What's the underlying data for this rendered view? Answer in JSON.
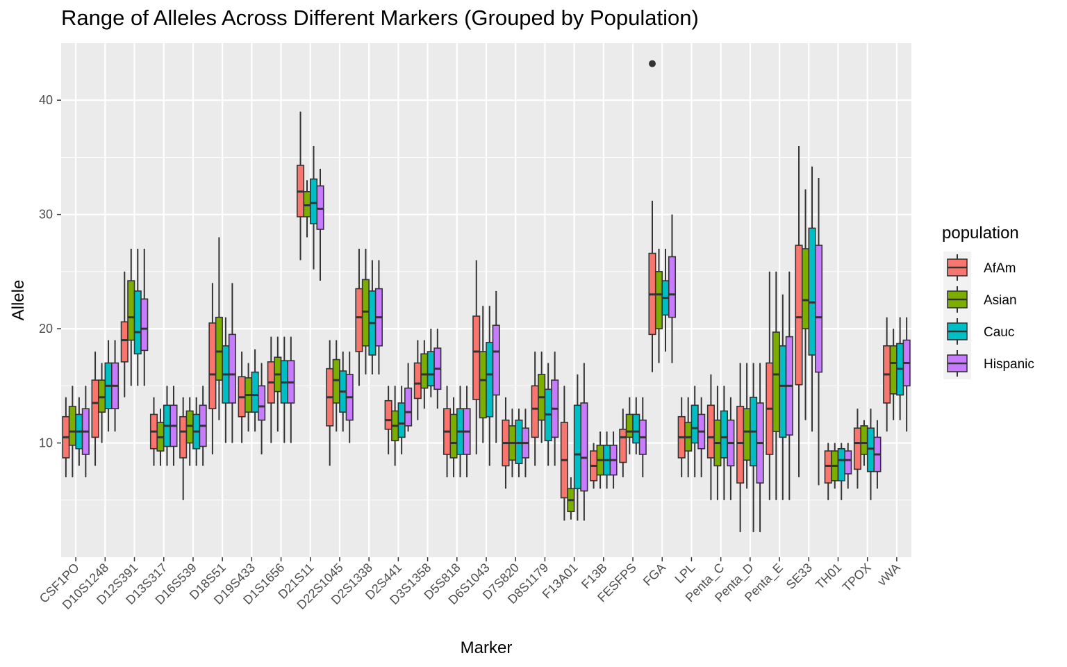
{
  "chart_data": {
    "type": "boxplot",
    "title": "Range of Alleles Across Different Markers (Grouped by Population)",
    "xlabel": "Marker",
    "ylabel": "Allele",
    "ylim": [
      0,
      45
    ],
    "yticks": [
      10,
      20,
      30,
      40
    ],
    "grid": true,
    "legend": {
      "title": "population",
      "position": "right"
    },
    "categories": [
      "CSF1PO",
      "D10S1248",
      "D12S391",
      "D13S317",
      "D16S539",
      "D18S51",
      "D19S433",
      "D1S1656",
      "D21S11",
      "D22S1045",
      "D2S1338",
      "D2S441",
      "D3S1358",
      "D5S818",
      "D6S1043",
      "D7S820",
      "D8S1179",
      "F13A01",
      "F13B",
      "FESFPS",
      "FGA",
      "LPL",
      "Penta_C",
      "Penta_D",
      "Penta_E",
      "SE33",
      "TH01",
      "TPOX",
      "vWA"
    ],
    "series": [
      {
        "name": "AfAm",
        "color": "#F8766D",
        "boxes": [
          {
            "lw": 7,
            "q1": 8.7,
            "med": 10.5,
            "q3": 12.3,
            "hw": 14
          },
          {
            "lw": 8,
            "q1": 10.5,
            "med": 13.5,
            "q3": 15.5,
            "hw": 18
          },
          {
            "lw": 14,
            "q1": 17.1,
            "med": 19,
            "q3": 20.6,
            "hw": 25
          },
          {
            "lw": 8,
            "q1": 9.5,
            "med": 11,
            "q3": 12.5,
            "hw": 14
          },
          {
            "lw": 5,
            "q1": 8.7,
            "med": 11,
            "q3": 12.3,
            "hw": 14
          },
          {
            "lw": 9,
            "q1": 13,
            "med": 16,
            "q3": 20.5,
            "hw": 24
          },
          {
            "lw": 10,
            "q1": 12.3,
            "med": 14,
            "q3": 15.8,
            "hw": 18
          },
          {
            "lw": 10,
            "q1": 13.5,
            "med": 15.3,
            "q3": 17.1,
            "hw": 19.3
          },
          {
            "lw": 26,
            "q1": 29.8,
            "med": 32,
            "q3": 34.3,
            "hw": 39
          },
          {
            "lw": 8,
            "q1": 11.5,
            "med": 14,
            "q3": 16.5,
            "hw": 19
          },
          {
            "lw": 15,
            "q1": 18,
            "med": 21,
            "q3": 23.5,
            "hw": 27
          },
          {
            "lw": 9,
            "q1": 11.2,
            "med": 12,
            "q3": 13.7,
            "hw": 15
          },
          {
            "lw": 12,
            "q1": 13.9,
            "med": 15.2,
            "q3": 17,
            "hw": 19
          },
          {
            "lw": 7,
            "q1": 9,
            "med": 11,
            "q3": 13,
            "hw": 15
          },
          {
            "lw": 9,
            "q1": 13.8,
            "med": 18,
            "q3": 21.1,
            "hw": 26
          },
          {
            "lw": 6,
            "q1": 8,
            "med": 10,
            "q3": 12,
            "hw": 14
          },
          {
            "lw": 8,
            "q1": 10.5,
            "med": 13,
            "q3": 15,
            "hw": 18
          },
          {
            "lw": 3.2,
            "q1": 5.2,
            "med": 8.5,
            "q3": 11.8,
            "hw": 15
          },
          {
            "lw": 6,
            "q1": 6.7,
            "med": 8,
            "q3": 9.3,
            "hw": 10
          },
          {
            "lw": 7,
            "q1": 8.3,
            "med": 10.5,
            "q3": 11.2,
            "hw": 13
          },
          {
            "lw": 16.2,
            "q1": 19.5,
            "med": 23,
            "q3": 26.6,
            "hw": 31.2,
            "outliers": [
              43.2
            ]
          },
          {
            "lw": 7,
            "q1": 8.7,
            "med": 10.5,
            "q3": 12.3,
            "hw": 14
          },
          {
            "lw": 5,
            "q1": 8.7,
            "med": 10.5,
            "q3": 13.3,
            "hw": 16
          },
          {
            "lw": 2.2,
            "q1": 6.5,
            "med": 10,
            "q3": 13.2,
            "hw": 17
          },
          {
            "lw": 5,
            "q1": 9,
            "med": 13,
            "q3": 17,
            "hw": 25
          },
          {
            "lw": 7,
            "q1": 15.1,
            "med": 21,
            "q3": 27.3,
            "hw": 36
          },
          {
            "lw": 5,
            "q1": 6.5,
            "med": 8,
            "q3": 9.3,
            "hw": 10
          },
          {
            "lw": 6,
            "q1": 7.7,
            "med": 10,
            "q3": 11.3,
            "hw": 13
          },
          {
            "lw": 11,
            "q1": 13.5,
            "med": 16,
            "q3": 18.5,
            "hw": 21
          }
        ]
      },
      {
        "name": "Asian",
        "color": "#7CAE00",
        "boxes": [
          {
            "lw": 7,
            "q1": 9.8,
            "med": 11,
            "q3": 13.2,
            "hw": 15
          },
          {
            "lw": 10,
            "q1": 12.7,
            "med": 14,
            "q3": 15.5,
            "hw": 17
          },
          {
            "lw": 15,
            "q1": 19,
            "med": 21,
            "q3": 24.2,
            "hw": 27
          },
          {
            "lw": 8,
            "q1": 9.3,
            "med": 10.5,
            "q3": 11.8,
            "hw": 13
          },
          {
            "lw": 8,
            "q1": 10,
            "med": 11.5,
            "q3": 12.8,
            "hw": 14
          },
          {
            "lw": 12,
            "q1": 15.5,
            "med": 18,
            "q3": 21,
            "hw": 28
          },
          {
            "lw": 11,
            "q1": 12.7,
            "med": 14.2,
            "q3": 15.7,
            "hw": 17
          },
          {
            "lw": 11,
            "q1": 14.5,
            "med": 16,
            "q3": 17.5,
            "hw": 19.3
          },
          {
            "lw": 28,
            "q1": 29.8,
            "med": 30.8,
            "q3": 32,
            "hw": 33
          },
          {
            "lw": 11,
            "q1": 13.5,
            "med": 15.5,
            "q3": 17.3,
            "hw": 19
          },
          {
            "lw": 16,
            "q1": 18.5,
            "med": 21.5,
            "q3": 24.3,
            "hw": 27
          },
          {
            "lw": 8,
            "q1": 10.2,
            "med": 11.5,
            "q3": 12.8,
            "hw": 15
          },
          {
            "lw": 13,
            "q1": 14.8,
            "med": 16,
            "q3": 17.8,
            "hw": 19
          },
          {
            "lw": 7,
            "q1": 8.7,
            "med": 10,
            "q3": 12.5,
            "hw": 14
          },
          {
            "lw": 10,
            "q1": 12.2,
            "med": 15.5,
            "q3": 18,
            "hw": 22
          },
          {
            "lw": 7,
            "q1": 8.5,
            "med": 10,
            "q3": 11.5,
            "hw": 13
          },
          {
            "lw": 10,
            "q1": 12,
            "med": 14,
            "q3": 16,
            "hw": 18
          },
          {
            "lw": 3.3,
            "q1": 4,
            "med": 5,
            "q3": 6,
            "hw": 7
          },
          {
            "lw": 6,
            "q1": 7.2,
            "med": 8.5,
            "q3": 9.8,
            "hw": 11
          },
          {
            "lw": 9,
            "q1": 10.5,
            "med": 11,
            "q3": 12.5,
            "hw": 14
          },
          {
            "lw": 17,
            "q1": 20,
            "med": 23,
            "q3": 25,
            "hw": 27
          },
          {
            "lw": 7,
            "q1": 9.3,
            "med": 10.5,
            "q3": 11.8,
            "hw": 14
          },
          {
            "lw": 5,
            "q1": 8,
            "med": 10,
            "q3": 12,
            "hw": 15
          },
          {
            "lw": 6,
            "q1": 8.5,
            "med": 11,
            "q3": 13,
            "hw": 17
          },
          {
            "lw": 5,
            "q1": 11,
            "med": 16,
            "q3": 19.7,
            "hw": 25
          },
          {
            "lw": 12,
            "q1": 20,
            "med": 22.5,
            "q3": 27,
            "hw": 32.2
          },
          {
            "lw": 6,
            "q1": 6.7,
            "med": 8,
            "q3": 9.3,
            "hw": 10
          },
          {
            "lw": 8,
            "q1": 9,
            "med": 10,
            "q3": 11.5,
            "hw": 12
          },
          {
            "lw": 12,
            "q1": 14.3,
            "med": 17,
            "q3": 18.5,
            "hw": 20
          }
        ]
      },
      {
        "name": "Cauc",
        "color": "#00BFC4",
        "boxes": [
          {
            "lw": 8,
            "q1": 9.5,
            "med": 11,
            "q3": 12.5,
            "hw": 14
          },
          {
            "lw": 11,
            "q1": 13,
            "med": 15,
            "q3": 17,
            "hw": 19
          },
          {
            "lw": 15,
            "q1": 17.8,
            "med": 19.7,
            "q3": 23.3,
            "hw": 27
          },
          {
            "lw": 8,
            "q1": 9.7,
            "med": 11.5,
            "q3": 13.3,
            "hw": 15
          },
          {
            "lw": 8,
            "q1": 9.5,
            "med": 11,
            "q3": 12.5,
            "hw": 14
          },
          {
            "lw": 10,
            "q1": 13.5,
            "med": 16,
            "q3": 18.5,
            "hw": 21
          },
          {
            "lw": 11,
            "q1": 12.7,
            "med": 14.2,
            "q3": 16.2,
            "hw": 18.2
          },
          {
            "lw": 10,
            "q1": 13.5,
            "med": 15.3,
            "q3": 17.2,
            "hw": 19.3
          },
          {
            "lw": 25.2,
            "q1": 29.2,
            "med": 31,
            "q3": 33.1,
            "hw": 36
          },
          {
            "lw": 11,
            "q1": 12.7,
            "med": 14.5,
            "q3": 16.3,
            "hw": 18
          },
          {
            "lw": 16,
            "q1": 17.7,
            "med": 20.5,
            "q3": 23.3,
            "hw": 26
          },
          {
            "lw": 9,
            "q1": 10.5,
            "med": 11.7,
            "q3": 13.5,
            "hw": 15
          },
          {
            "lw": 14,
            "q1": 15,
            "med": 16,
            "q3": 18,
            "hw": 20
          },
          {
            "lw": 7,
            "q1": 9,
            "med": 11,
            "q3": 13,
            "hw": 15
          },
          {
            "lw": 8,
            "q1": 12.3,
            "med": 16,
            "q3": 18.8,
            "hw": 22
          },
          {
            "lw": 7,
            "q1": 8.2,
            "med": 10,
            "q3": 12,
            "hw": 13
          },
          {
            "lw": 8,
            "q1": 10.2,
            "med": 12.5,
            "q3": 14.7,
            "hw": 17
          },
          {
            "lw": 3.2,
            "q1": 6,
            "med": 9,
            "q3": 13.3,
            "hw": 16
          },
          {
            "lw": 6,
            "q1": 7.2,
            "med": 8.5,
            "q3": 9.8,
            "hw": 11
          },
          {
            "lw": 9,
            "q1": 10,
            "med": 11,
            "q3": 12.5,
            "hw": 14
          },
          {
            "lw": 18,
            "q1": 21.2,
            "med": 22.7,
            "q3": 24.2,
            "hw": 27
          },
          {
            "lw": 7,
            "q1": 10,
            "med": 11.3,
            "q3": 13.3,
            "hw": 15
          },
          {
            "lw": 5,
            "q1": 8.7,
            "med": 10.5,
            "q3": 12.8,
            "hw": 15
          },
          {
            "lw": 2.2,
            "q1": 8,
            "med": 11,
            "q3": 14,
            "hw": 17
          },
          {
            "lw": 5,
            "q1": 10.5,
            "med": 15,
            "q3": 18.5,
            "hw": 23
          },
          {
            "lw": 11,
            "q1": 17.7,
            "med": 22.3,
            "q3": 28.8,
            "hw": 34.2
          },
          {
            "lw": 5,
            "q1": 6.7,
            "med": 8.5,
            "q3": 9.5,
            "hw": 10
          },
          {
            "lw": 5,
            "q1": 7.5,
            "med": 9.5,
            "q3": 11.3,
            "hw": 13
          },
          {
            "lw": 12,
            "q1": 14.2,
            "med": 16.5,
            "q3": 18.7,
            "hw": 21
          }
        ]
      },
      {
        "name": "Hispanic",
        "color": "#C77CFF",
        "boxes": [
          {
            "lw": 7,
            "q1": 9,
            "med": 11,
            "q3": 13,
            "hw": 15
          },
          {
            "lw": 11,
            "q1": 13,
            "med": 15,
            "q3": 17,
            "hw": 19
          },
          {
            "lw": 15,
            "q1": 18.1,
            "med": 20,
            "q3": 22.6,
            "hw": 27
          },
          {
            "lw": 8,
            "q1": 9.7,
            "med": 11.5,
            "q3": 13.3,
            "hw": 15
          },
          {
            "lw": 8,
            "q1": 9.7,
            "med": 11.5,
            "q3": 13.3,
            "hw": 15
          },
          {
            "lw": 10,
            "q1": 13.5,
            "med": 16,
            "q3": 19.5,
            "hw": 24
          },
          {
            "lw": 9,
            "q1": 12,
            "med": 13.2,
            "q3": 15,
            "hw": 17
          },
          {
            "lw": 10,
            "q1": 13.5,
            "med": 15.3,
            "q3": 17.2,
            "hw": 19.3
          },
          {
            "lw": 24.2,
            "q1": 28.7,
            "med": 30.5,
            "q3": 32.5,
            "hw": 34
          },
          {
            "lw": 10,
            "q1": 12,
            "med": 14,
            "q3": 16,
            "hw": 18
          },
          {
            "lw": 16,
            "q1": 18.5,
            "med": 21,
            "q3": 23.5,
            "hw": 26
          },
          {
            "lw": 11,
            "q1": 11.5,
            "med": 12.7,
            "q3": 14.8,
            "hw": 17
          },
          {
            "lw": 13,
            "q1": 14.7,
            "med": 16.5,
            "q3": 18.3,
            "hw": 20
          },
          {
            "lw": 7,
            "q1": 9,
            "med": 11,
            "q3": 13,
            "hw": 15
          },
          {
            "lw": 10,
            "q1": 14.2,
            "med": 18,
            "q3": 20.3,
            "hw": 23.3
          },
          {
            "lw": 7,
            "q1": 8.7,
            "med": 10,
            "q3": 11.3,
            "hw": 13
          },
          {
            "lw": 8,
            "q1": 10.5,
            "med": 13,
            "q3": 15.5,
            "hw": 18
          },
          {
            "lw": 3.2,
            "q1": 5.8,
            "med": 8.7,
            "q3": 13.5,
            "hw": 17
          },
          {
            "lw": 6,
            "q1": 7.2,
            "med": 8.5,
            "q3": 9.8,
            "hw": 11
          },
          {
            "lw": 7,
            "q1": 9,
            "med": 10.5,
            "q3": 12,
            "hw": 14
          },
          {
            "lw": 17,
            "q1": 21,
            "med": 23,
            "q3": 26.3,
            "hw": 30
          },
          {
            "lw": 7,
            "q1": 9.5,
            "med": 11,
            "q3": 12.5,
            "hw": 14
          },
          {
            "lw": 5,
            "q1": 8,
            "med": 10,
            "q3": 12,
            "hw": 14
          },
          {
            "lw": 2.2,
            "q1": 6.5,
            "med": 10,
            "q3": 13.5,
            "hw": 17
          },
          {
            "lw": 5,
            "q1": 10.7,
            "med": 15,
            "q3": 19.3,
            "hw": 25
          },
          {
            "lw": 6.3,
            "q1": 16.2,
            "med": 21,
            "q3": 27.3,
            "hw": 33.2
          },
          {
            "lw": 6,
            "q1": 7.3,
            "med": 8.5,
            "q3": 9.3,
            "hw": 10
          },
          {
            "lw": 6,
            "q1": 7.5,
            "med": 9,
            "q3": 10.5,
            "hw": 12
          },
          {
            "lw": 11,
            "q1": 15,
            "med": 17,
            "q3": 19,
            "hw": 21
          }
        ]
      }
    ]
  }
}
